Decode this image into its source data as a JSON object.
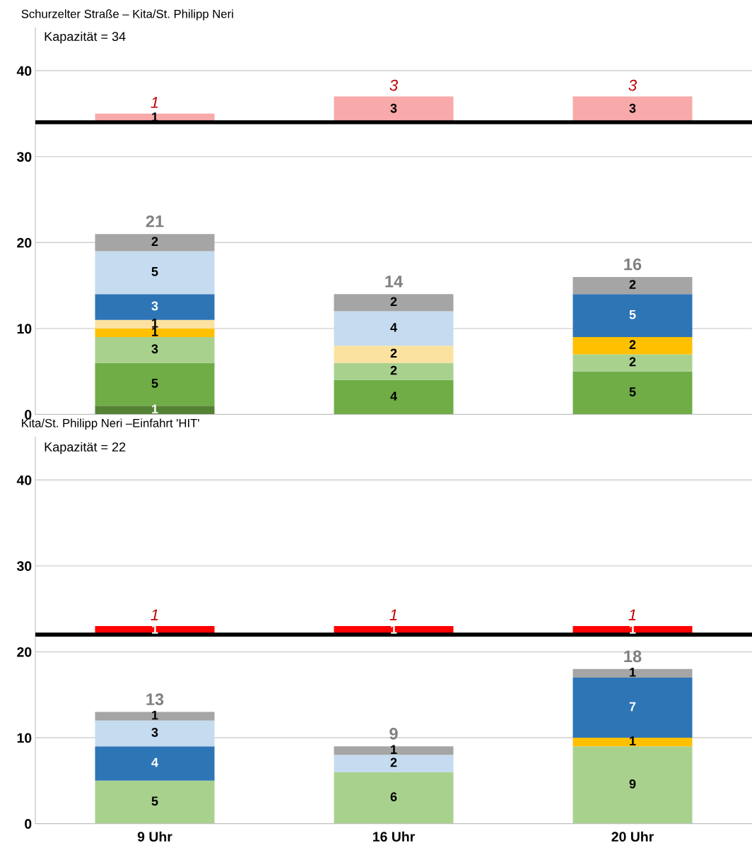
{
  "chart_data": [
    {
      "type": "bar",
      "title": "Schurzelter Straße – Kita/St. Philipp Neri",
      "categories": [
        null,
        null,
        null
      ],
      "base": [
        34,
        34,
        34
      ],
      "values": [
        1,
        3,
        3
      ],
      "color": "#f8a9a9",
      "ylim": [
        27,
        45
      ],
      "yticks": [
        30,
        40
      ],
      "grid": "y",
      "tick_labels": "y",
      "data_labels": true,
      "ref_lines": [
        {
          "axis": "y",
          "value": 34,
          "label": "Kapazität = 34",
          "color": "#000000"
        }
      ],
      "annotations": [
        "1",
        "3",
        "3"
      ]
    },
    {
      "type": "bar",
      "categories": [
        null,
        null,
        null
      ],
      "stacked": true,
      "ylim": [
        0,
        27
      ],
      "yticks": [
        0,
        10,
        20
      ],
      "grid": "y",
      "tick_labels": "y",
      "data_labels": true,
      "series": [
        {
          "color": "#548235",
          "values": [
            1,
            null,
            null
          ]
        },
        {
          "color": "#70ad47",
          "values": [
            5,
            4,
            5
          ]
        },
        {
          "color": "#a9d18e",
          "values": [
            3,
            2,
            2
          ]
        },
        {
          "color": "#ffc000",
          "values": [
            1,
            null,
            2
          ]
        },
        {
          "color": "#fbe2a0",
          "values": [
            1,
            2,
            null
          ]
        },
        {
          "color": "#2e75b6",
          "values": [
            3,
            null,
            5
          ]
        },
        {
          "color": "#c5dbef",
          "values": [
            5,
            4,
            null
          ]
        },
        {
          "color": "#a5a5a5",
          "values": [
            2,
            2,
            2
          ]
        }
      ],
      "totals": [
        "21",
        "14",
        "16"
      ]
    },
    {
      "type": "bar",
      "title": "Kita/St. Philipp Neri –Einfahrt 'HIT'",
      "categories": [
        null,
        null,
        null
      ],
      "base": [
        22,
        22,
        22
      ],
      "values": [
        1,
        1,
        1
      ],
      "color": "#ff0000",
      "ylim": [
        21,
        45
      ],
      "yticks": [
        30,
        40
      ],
      "grid": "y",
      "tick_labels": "y",
      "data_labels": true,
      "ref_lines": [
        {
          "axis": "y",
          "value": 22,
          "label": "Kapazität = 22",
          "color": "#000000"
        }
      ],
      "annotations": [
        "1",
        "1",
        "1"
      ]
    },
    {
      "type": "bar",
      "categories": [
        "9 Uhr",
        "16 Uhr",
        "20 Uhr"
      ],
      "stacked": true,
      "ylim": [
        0,
        21
      ],
      "yticks": [
        0,
        10,
        20
      ],
      "grid": "y",
      "data_labels": true,
      "series": [
        {
          "color": "#a9d18e",
          "values": [
            5,
            6,
            9
          ]
        },
        {
          "color": "#ffc000",
          "values": [
            null,
            null,
            1
          ]
        },
        {
          "color": "#2e75b6",
          "values": [
            4,
            null,
            7
          ]
        },
        {
          "color": "#c5dbef",
          "values": [
            3,
            2,
            null
          ]
        },
        {
          "color": "#a5a5a5",
          "values": [
            1,
            1,
            1
          ]
        }
      ],
      "totals": [
        "13",
        "9",
        "18"
      ]
    }
  ]
}
